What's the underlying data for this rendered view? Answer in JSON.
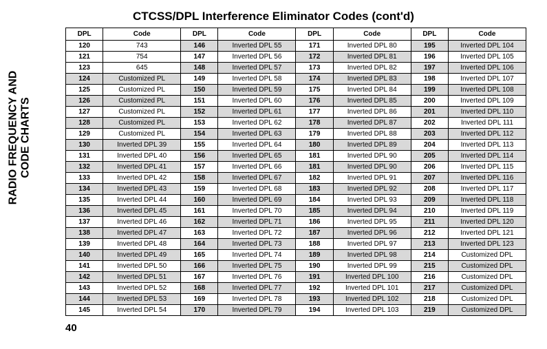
{
  "page": {
    "title": "CTCSS/DPL Interference Eliminator Codes (cont'd)",
    "sidebar_line1": "RADIO FREQUENCY AND",
    "sidebar_line2": "CODE CHARTS",
    "page_number": "40"
  },
  "headers": [
    "DPL",
    "Code",
    "DPL",
    "Code",
    "DPL",
    "Code",
    "DPL",
    "Code"
  ],
  "rows": [
    [
      {
        "v": "120",
        "s": false
      },
      {
        "v": "743",
        "s": false
      },
      {
        "v": "146",
        "s": true
      },
      {
        "v": "Inverted DPL 55",
        "s": true
      },
      {
        "v": "171",
        "s": false
      },
      {
        "v": "Inverted DPL 80",
        "s": false
      },
      {
        "v": "195",
        "s": true
      },
      {
        "v": "Inverted DPL 104",
        "s": true
      }
    ],
    [
      {
        "v": "121",
        "s": false
      },
      {
        "v": "754",
        "s": false
      },
      {
        "v": "147",
        "s": false
      },
      {
        "v": "Inverted DPL 56",
        "s": false
      },
      {
        "v": "172",
        "s": true
      },
      {
        "v": "Inverted DPL 81",
        "s": true
      },
      {
        "v": "196",
        "s": false
      },
      {
        "v": "Inverted DPL 105",
        "s": false
      }
    ],
    [
      {
        "v": "123",
        "s": false
      },
      {
        "v": "645",
        "s": false
      },
      {
        "v": "148",
        "s": true
      },
      {
        "v": "Inverted DPL 57",
        "s": true
      },
      {
        "v": "173",
        "s": false
      },
      {
        "v": "Inverted DPL 82",
        "s": false
      },
      {
        "v": "197",
        "s": true
      },
      {
        "v": "Inverted DPL 106",
        "s": true
      }
    ],
    [
      {
        "v": "124",
        "s": true
      },
      {
        "v": "Customized PL",
        "s": true
      },
      {
        "v": "149",
        "s": false
      },
      {
        "v": "Inverted DPL 58",
        "s": false
      },
      {
        "v": "174",
        "s": true
      },
      {
        "v": "Inverted DPL 83",
        "s": true
      },
      {
        "v": "198",
        "s": false
      },
      {
        "v": "Inverted DPL 107",
        "s": false
      }
    ],
    [
      {
        "v": "125",
        "s": false
      },
      {
        "v": "Customized PL",
        "s": false
      },
      {
        "v": "150",
        "s": true
      },
      {
        "v": "Inverted DPL 59",
        "s": true
      },
      {
        "v": "175",
        "s": false
      },
      {
        "v": "Inverted DPL 84",
        "s": false
      },
      {
        "v": "199",
        "s": true
      },
      {
        "v": "Inverted DPL 108",
        "s": true
      }
    ],
    [
      {
        "v": "126",
        "s": true
      },
      {
        "v": "Customized PL",
        "s": true
      },
      {
        "v": "151",
        "s": false
      },
      {
        "v": "Inverted DPL 60",
        "s": false
      },
      {
        "v": "176",
        "s": true
      },
      {
        "v": "Inverted DPL 85",
        "s": true
      },
      {
        "v": "200",
        "s": false
      },
      {
        "v": "Inverted DPL  109",
        "s": false
      }
    ],
    [
      {
        "v": "127",
        "s": false
      },
      {
        "v": "Customized PL",
        "s": false
      },
      {
        "v": "152",
        "s": true
      },
      {
        "v": "Inverted DPL 61",
        "s": true
      },
      {
        "v": "177",
        "s": false
      },
      {
        "v": "Inverted DPL 86",
        "s": false
      },
      {
        "v": "201",
        "s": true
      },
      {
        "v": "Inverted DPL 110",
        "s": true
      }
    ],
    [
      {
        "v": "128",
        "s": true
      },
      {
        "v": "Customized PL",
        "s": true
      },
      {
        "v": "153",
        "s": false
      },
      {
        "v": "Inverted DPL 62",
        "s": false
      },
      {
        "v": "178",
        "s": true
      },
      {
        "v": "Inverted DPL 87",
        "s": true
      },
      {
        "v": "202",
        "s": false
      },
      {
        "v": "Inverted DPL 111",
        "s": false
      }
    ],
    [
      {
        "v": "129",
        "s": false
      },
      {
        "v": "Customized PL",
        "s": false
      },
      {
        "v": "154",
        "s": true
      },
      {
        "v": "Inverted DPL 63",
        "s": true
      },
      {
        "v": "179",
        "s": false
      },
      {
        "v": "Inverted DPL 88",
        "s": false
      },
      {
        "v": "203",
        "s": true
      },
      {
        "v": "Inverted DPL 112",
        "s": true
      }
    ],
    [
      {
        "v": "130",
        "s": true
      },
      {
        "v": "Inverted DPL 39",
        "s": true
      },
      {
        "v": "155",
        "s": false
      },
      {
        "v": "Inverted DPL 64",
        "s": false
      },
      {
        "v": "180",
        "s": true
      },
      {
        "v": "Inverted DPL 89",
        "s": true
      },
      {
        "v": "204",
        "s": false
      },
      {
        "v": "Inverted DPL 113",
        "s": false
      }
    ],
    [
      {
        "v": "131",
        "s": false
      },
      {
        "v": "Inverted DPL 40",
        "s": false
      },
      {
        "v": "156",
        "s": true
      },
      {
        "v": "Inverted DPL 65",
        "s": true
      },
      {
        "v": "181",
        "s": false
      },
      {
        "v": "Inverted DPL 90",
        "s": false
      },
      {
        "v": "205",
        "s": true
      },
      {
        "v": "Inverted DPL 114",
        "s": true
      }
    ],
    [
      {
        "v": "132",
        "s": true
      },
      {
        "v": "Inverted DPL 41",
        "s": true
      },
      {
        "v": "157",
        "s": false
      },
      {
        "v": "Inverted DPL 66",
        "s": false
      },
      {
        "v": "181",
        "s": true
      },
      {
        "v": "Inverted DPL 90",
        "s": true
      },
      {
        "v": "206",
        "s": false
      },
      {
        "v": "Inverted DPL 115",
        "s": false
      }
    ],
    [
      {
        "v": "133",
        "s": false
      },
      {
        "v": "Inverted DPL 42",
        "s": false
      },
      {
        "v": "158",
        "s": true
      },
      {
        "v": "Inverted DPL 67",
        "s": true
      },
      {
        "v": "182",
        "s": false
      },
      {
        "v": "Inverted DPL 91",
        "s": false
      },
      {
        "v": "207",
        "s": true
      },
      {
        "v": "Inverted DPL 116",
        "s": true
      }
    ],
    [
      {
        "v": "134",
        "s": true
      },
      {
        "v": "Inverted DPL 43",
        "s": true
      },
      {
        "v": "159",
        "s": false
      },
      {
        "v": "Inverted DPL 68",
        "s": false
      },
      {
        "v": "183",
        "s": true
      },
      {
        "v": "Inverted DPL 92",
        "s": true
      },
      {
        "v": "208",
        "s": false
      },
      {
        "v": "Inverted DPL 117",
        "s": false
      }
    ],
    [
      {
        "v": "135",
        "s": false
      },
      {
        "v": "Inverted DPL 44",
        "s": false
      },
      {
        "v": "160",
        "s": true
      },
      {
        "v": "Inverted DPL 69",
        "s": true
      },
      {
        "v": "184",
        "s": false
      },
      {
        "v": "Inverted DPL 93",
        "s": false
      },
      {
        "v": "209",
        "s": true
      },
      {
        "v": "Inverted DPL 118",
        "s": true
      }
    ],
    [
      {
        "v": "136",
        "s": true
      },
      {
        "v": "Inverted DPL 45",
        "s": true
      },
      {
        "v": "161",
        "s": false
      },
      {
        "v": "Inverted DPL 70",
        "s": false
      },
      {
        "v": "185",
        "s": true
      },
      {
        "v": "Inverted DPL 94",
        "s": true
      },
      {
        "v": "210",
        "s": false
      },
      {
        "v": "Inverted DPL 119",
        "s": false
      }
    ],
    [
      {
        "v": "137",
        "s": false
      },
      {
        "v": "Inverted DPL 46",
        "s": false
      },
      {
        "v": "162",
        "s": true
      },
      {
        "v": "Inverted DPL 71",
        "s": true
      },
      {
        "v": "186",
        "s": false
      },
      {
        "v": "Inverted DPL 95",
        "s": false
      },
      {
        "v": "211",
        "s": true
      },
      {
        "v": "Inverted DPL 120",
        "s": true
      }
    ],
    [
      {
        "v": "138",
        "s": true
      },
      {
        "v": "Inverted DPL 47",
        "s": true
      },
      {
        "v": "163",
        "s": false
      },
      {
        "v": "Inverted DPL 72",
        "s": false
      },
      {
        "v": "187",
        "s": true
      },
      {
        "v": "Inverted DPL 96",
        "s": true
      },
      {
        "v": "212",
        "s": false
      },
      {
        "v": "Inverted DPL 121",
        "s": false
      }
    ],
    [
      {
        "v": "139",
        "s": false
      },
      {
        "v": "Inverted DPL 48",
        "s": false
      },
      {
        "v": "164",
        "s": true
      },
      {
        "v": "Inverted DPL 73",
        "s": true
      },
      {
        "v": "188",
        "s": false
      },
      {
        "v": "Inverted DPL 97",
        "s": false
      },
      {
        "v": "213",
        "s": true
      },
      {
        "v": "Inverted DPL 123",
        "s": true
      }
    ],
    [
      {
        "v": "140",
        "s": true
      },
      {
        "v": "Inverted DPL  49",
        "s": true
      },
      {
        "v": "165",
        "s": false
      },
      {
        "v": "Inverted DPL 74",
        "s": false
      },
      {
        "v": "189",
        "s": true
      },
      {
        "v": "Inverted DPL 98",
        "s": true
      },
      {
        "v": "214",
        "s": false
      },
      {
        "v": "Customized DPL",
        "s": false
      }
    ],
    [
      {
        "v": "141",
        "s": false
      },
      {
        "v": "Inverted DPL 50",
        "s": false
      },
      {
        "v": "166",
        "s": true
      },
      {
        "v": "Inverted DPL 75",
        "s": true
      },
      {
        "v": "190",
        "s": false
      },
      {
        "v": "Inverted DPL 99",
        "s": false
      },
      {
        "v": "215",
        "s": true
      },
      {
        "v": "Customized DPL",
        "s": true
      }
    ],
    [
      {
        "v": "142",
        "s": true
      },
      {
        "v": "Inverted DPL 51",
        "s": true
      },
      {
        "v": "167",
        "s": false
      },
      {
        "v": "Inverted DPL 76",
        "s": false
      },
      {
        "v": "191",
        "s": true
      },
      {
        "v": "Inverted DPL 100",
        "s": true
      },
      {
        "v": "216",
        "s": false
      },
      {
        "v": "Customized DPL",
        "s": false
      }
    ],
    [
      {
        "v": "143",
        "s": false
      },
      {
        "v": "Inverted DPL 52",
        "s": false
      },
      {
        "v": "168",
        "s": true
      },
      {
        "v": "Inverted DPL 77",
        "s": true
      },
      {
        "v": "192",
        "s": false
      },
      {
        "v": "Inverted DPL 101",
        "s": false
      },
      {
        "v": "217",
        "s": true
      },
      {
        "v": "Customized DPL",
        "s": true
      }
    ],
    [
      {
        "v": "144",
        "s": true
      },
      {
        "v": "Inverted DPL 53",
        "s": true
      },
      {
        "v": "169",
        "s": false
      },
      {
        "v": "Inverted DPL 78",
        "s": false
      },
      {
        "v": "193",
        "s": true
      },
      {
        "v": "Inverted DPL 102",
        "s": true
      },
      {
        "v": "218",
        "s": false
      },
      {
        "v": "Customized DPL",
        "s": false
      }
    ],
    [
      {
        "v": "145",
        "s": false
      },
      {
        "v": "Inverted DPL 54",
        "s": false
      },
      {
        "v": "170",
        "s": true
      },
      {
        "v": "Inverted DPL 79",
        "s": true
      },
      {
        "v": "194",
        "s": false
      },
      {
        "v": "Inverted DPL 103",
        "s": false
      },
      {
        "v": "219",
        "s": true
      },
      {
        "v": "Customized DPL",
        "s": true
      }
    ]
  ]
}
